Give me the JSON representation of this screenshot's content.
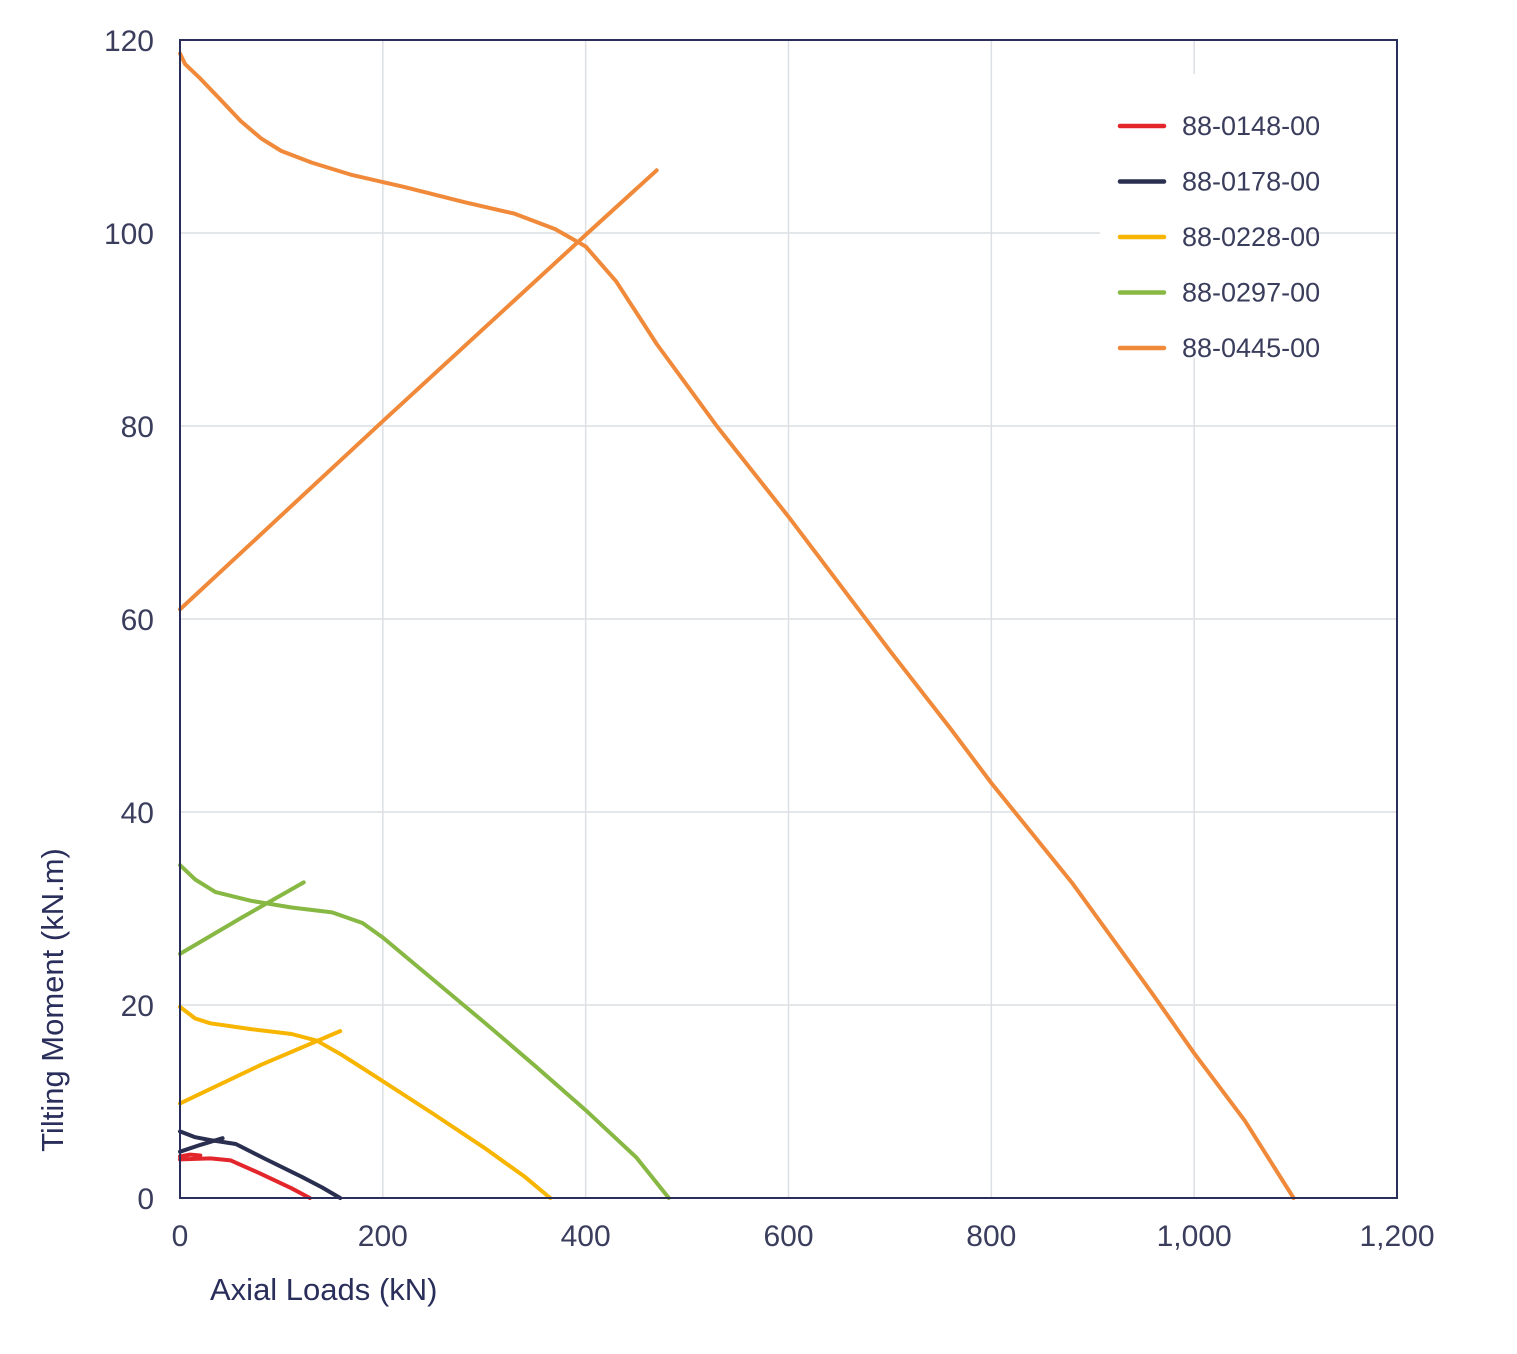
{
  "chart_data": {
    "type": "line",
    "title": "",
    "xlabel": "Axial Loads (kN)",
    "ylabel": "Tilting Moment (kN.m)",
    "xlim": [
      0,
      1200
    ],
    "ylim": [
      0,
      120
    ],
    "x_ticks": [
      0,
      200,
      400,
      600,
      800,
      1000,
      1200
    ],
    "x_tick_labels": [
      "0",
      "200",
      "400",
      "600",
      "800",
      "1,000",
      "1,200"
    ],
    "y_ticks": [
      0,
      20,
      40,
      60,
      80,
      100,
      120
    ],
    "y_tick_labels": [
      "0",
      "20",
      "40",
      "60",
      "80",
      "100",
      "120"
    ],
    "grid": true,
    "legend_position": "top-right",
    "series": [
      {
        "name": "88-0148-00",
        "color": "#e3262b",
        "segments": [
          [
            [
              0,
              4.3
            ],
            [
              10,
              4.5
            ],
            [
              20,
              4.4
            ]
          ],
          [
            [
              0,
              4.0
            ],
            [
              30,
              4.1
            ],
            [
              50,
              3.9
            ],
            [
              80,
              2.5
            ],
            [
              110,
              1.0
            ],
            [
              128,
              0
            ]
          ]
        ]
      },
      {
        "name": "88-0178-00",
        "color": "#2a2e4f",
        "segments": [
          [
            [
              0,
              4.8
            ],
            [
              20,
              5.5
            ],
            [
              42,
              6.2
            ]
          ],
          [
            [
              0,
              6.9
            ],
            [
              15,
              6.3
            ],
            [
              30,
              6.0
            ],
            [
              55,
              5.6
            ],
            [
              85,
              4.0
            ],
            [
              120,
              2.2
            ],
            [
              140,
              1.1
            ],
            [
              158,
              0
            ]
          ]
        ]
      },
      {
        "name": "88-0228-00",
        "color": "#f7b500",
        "segments": [
          [
            [
              0,
              9.8
            ],
            [
              80,
              13.8
            ],
            [
              158,
              17.3
            ]
          ],
          [
            [
              0,
              19.8
            ],
            [
              15,
              18.6
            ],
            [
              30,
              18.1
            ],
            [
              70,
              17.5
            ],
            [
              110,
              17.0
            ],
            [
              135,
              16.3
            ],
            [
              160,
              14.8
            ],
            [
              200,
              12.1
            ],
            [
              250,
              8.7
            ],
            [
              300,
              5.2
            ],
            [
              340,
              2.2
            ],
            [
              365,
              0
            ]
          ]
        ]
      },
      {
        "name": "88-0297-00",
        "color": "#88b844",
        "segments": [
          [
            [
              0,
              25.3
            ],
            [
              60,
              29.0
            ],
            [
              122,
              32.7
            ]
          ],
          [
            [
              0,
              34.5
            ],
            [
              15,
              33.0
            ],
            [
              35,
              31.7
            ],
            [
              70,
              30.8
            ],
            [
              110,
              30.1
            ],
            [
              150,
              29.6
            ],
            [
              180,
              28.5
            ],
            [
              200,
              27.0
            ],
            [
              250,
              22.6
            ],
            [
              300,
              18.2
            ],
            [
              350,
              13.7
            ],
            [
              400,
              9.1
            ],
            [
              450,
              4.2
            ],
            [
              482,
              0
            ]
          ]
        ]
      },
      {
        "name": "88-0445-00",
        "color": "#f08a3a",
        "segments": [
          [
            [
              0,
              61.0
            ],
            [
              200,
              80.5
            ],
            [
              400,
              99.8
            ],
            [
              470,
              106.5
            ]
          ],
          [
            [
              0,
              118.6
            ],
            [
              5,
              117.5
            ],
            [
              20,
              116.0
            ],
            [
              40,
              113.8
            ],
            [
              60,
              111.6
            ],
            [
              80,
              109.8
            ],
            [
              100,
              108.5
            ],
            [
              130,
              107.3
            ],
            [
              170,
              106.0
            ],
            [
              220,
              104.8
            ],
            [
              280,
              103.2
            ],
            [
              330,
              102.0
            ],
            [
              370,
              100.4
            ],
            [
              400,
              98.6
            ],
            [
              430,
              95.0
            ],
            [
              470,
              88.5
            ],
            [
              530,
              79.9
            ],
            [
              600,
              70.6
            ],
            [
              700,
              56.7
            ],
            [
              760,
              48.6
            ],
            [
              800,
              43.0
            ],
            [
              880,
              32.6
            ],
            [
              960,
              21.0
            ],
            [
              1000,
              15.0
            ],
            [
              1050,
              8.0
            ],
            [
              1080,
              3.0
            ],
            [
              1098,
              0
            ]
          ]
        ]
      }
    ]
  }
}
